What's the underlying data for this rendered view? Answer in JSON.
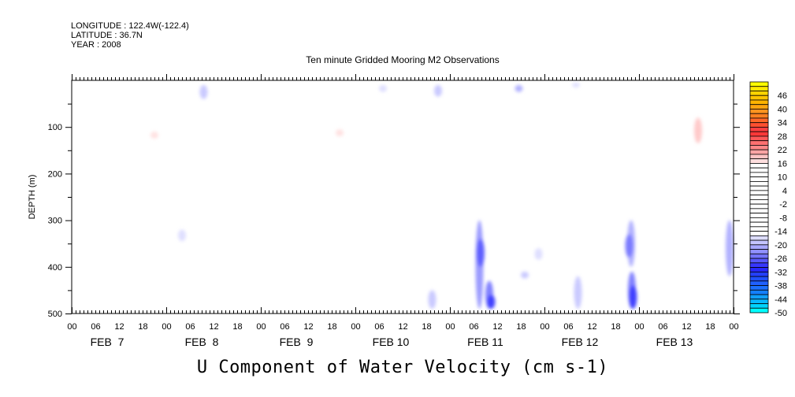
{
  "header": {
    "longitude": "LONGITUDE : 122.4W(-122.4)",
    "latitude": "LATITUDE : 36.7N",
    "year": "YEAR : 2008"
  },
  "chart_data": {
    "type": "heatmap",
    "title": "Ten minute Gridded Mooring M2 Observations",
    "xlabel": "U Component of Water Velocity (cm s-1)",
    "ylabel": "DEPTH (m)",
    "xlim_hours": [
      0,
      168
    ],
    "ylim": [
      0,
      500
    ],
    "y_reversed": true,
    "y_ticks": [
      100,
      200,
      300,
      400,
      500
    ],
    "x_hour_labels": [
      "00",
      "06",
      "12",
      "18"
    ],
    "x_day_labels": [
      "FEB  7",
      "FEB  8",
      "FEB  9",
      "FEB 10",
      "FEB 11",
      "FEB 12",
      "FEB 13"
    ],
    "colorbar": {
      "levels_min": -50,
      "levels_max": 52,
      "step": 2,
      "tick_labels": [
        "46",
        "40",
        "34",
        "28",
        "22",
        "16",
        "10",
        "4",
        "-2",
        "-8",
        "-14",
        "-20",
        "-26",
        "-32",
        "-38",
        "-44",
        "-50"
      ],
      "colors_top_to_bottom": [
        "#ffff00",
        "#ffe800",
        "#ffd400",
        "#ffc400",
        "#ffb400",
        "#ffa410",
        "#ff9420",
        "#ff8020",
        "#ff6828",
        "#ff5030",
        "#ff4040",
        "#ff3838",
        "#ff5858",
        "#ff7070",
        "#ff8888",
        "#ffa4a4",
        "#ffc4c4",
        "#ffdede",
        "#ffffff",
        "#ffffff",
        "#ffffff",
        "#ffffff",
        "#ffffff",
        "#ffffff",
        "#ffffff",
        "#ffffff",
        "#ffffff",
        "#ffffff",
        "#ffffff",
        "#ffffff",
        "#ffffff",
        "#ffffff",
        "#ffffff",
        "#ffffff",
        "#dcdcff",
        "#c4c4ff",
        "#a8a8ff",
        "#9090ff",
        "#7474ff",
        "#5858ff",
        "#3838ff",
        "#2828ff",
        "#2440ff",
        "#2050ff",
        "#2060ff",
        "#1c70ff",
        "#1480ff",
        "#10a0ff",
        "#08b8ff",
        "#00d4ff",
        "#00ffff"
      ]
    },
    "features": [
      {
        "hour": 33.5,
        "depth_min": 10,
        "depth_max": 40,
        "value": -18
      },
      {
        "hour": 79,
        "depth_min": 10,
        "depth_max": 25,
        "value": -16
      },
      {
        "hour": 93,
        "depth_min": 10,
        "depth_max": 35,
        "value": -18
      },
      {
        "hour": 113.5,
        "depth_min": 10,
        "depth_max": 25,
        "value": -20
      },
      {
        "hour": 128,
        "depth_min": 5,
        "depth_max": 15,
        "value": -16
      },
      {
        "hour": 159,
        "depth_min": 80,
        "depth_max": 135,
        "value": 20
      },
      {
        "hour": 21,
        "depth_min": 110,
        "depth_max": 125,
        "value": 18
      },
      {
        "hour": 68,
        "depth_min": 105,
        "depth_max": 120,
        "value": 18
      },
      {
        "hour": 28,
        "depth_min": 320,
        "depth_max": 345,
        "value": -16
      },
      {
        "hour": 103.5,
        "depth_min": 300,
        "depth_max": 490,
        "value": -22
      },
      {
        "hour": 103.8,
        "depth_min": 340,
        "depth_max": 400,
        "value": -26
      },
      {
        "hour": 106,
        "depth_min": 430,
        "depth_max": 490,
        "value": -24
      },
      {
        "hour": 106.5,
        "depth_min": 460,
        "depth_max": 490,
        "value": -28
      },
      {
        "hour": 118.5,
        "depth_min": 360,
        "depth_max": 385,
        "value": -16
      },
      {
        "hour": 115,
        "depth_min": 410,
        "depth_max": 425,
        "value": -18
      },
      {
        "hour": 91.5,
        "depth_min": 450,
        "depth_max": 490,
        "value": -18
      },
      {
        "hour": 128.5,
        "depth_min": 420,
        "depth_max": 490,
        "value": -18
      },
      {
        "hour": 142,
        "depth_min": 300,
        "depth_max": 400,
        "value": -20
      },
      {
        "hour": 141.5,
        "depth_min": 330,
        "depth_max": 380,
        "value": -24
      },
      {
        "hour": 142.2,
        "depth_min": 410,
        "depth_max": 490,
        "value": -24
      },
      {
        "hour": 142.5,
        "depth_min": 440,
        "depth_max": 490,
        "value": -28
      },
      {
        "hour": 167,
        "depth_min": 300,
        "depth_max": 420,
        "value": -20
      }
    ]
  }
}
